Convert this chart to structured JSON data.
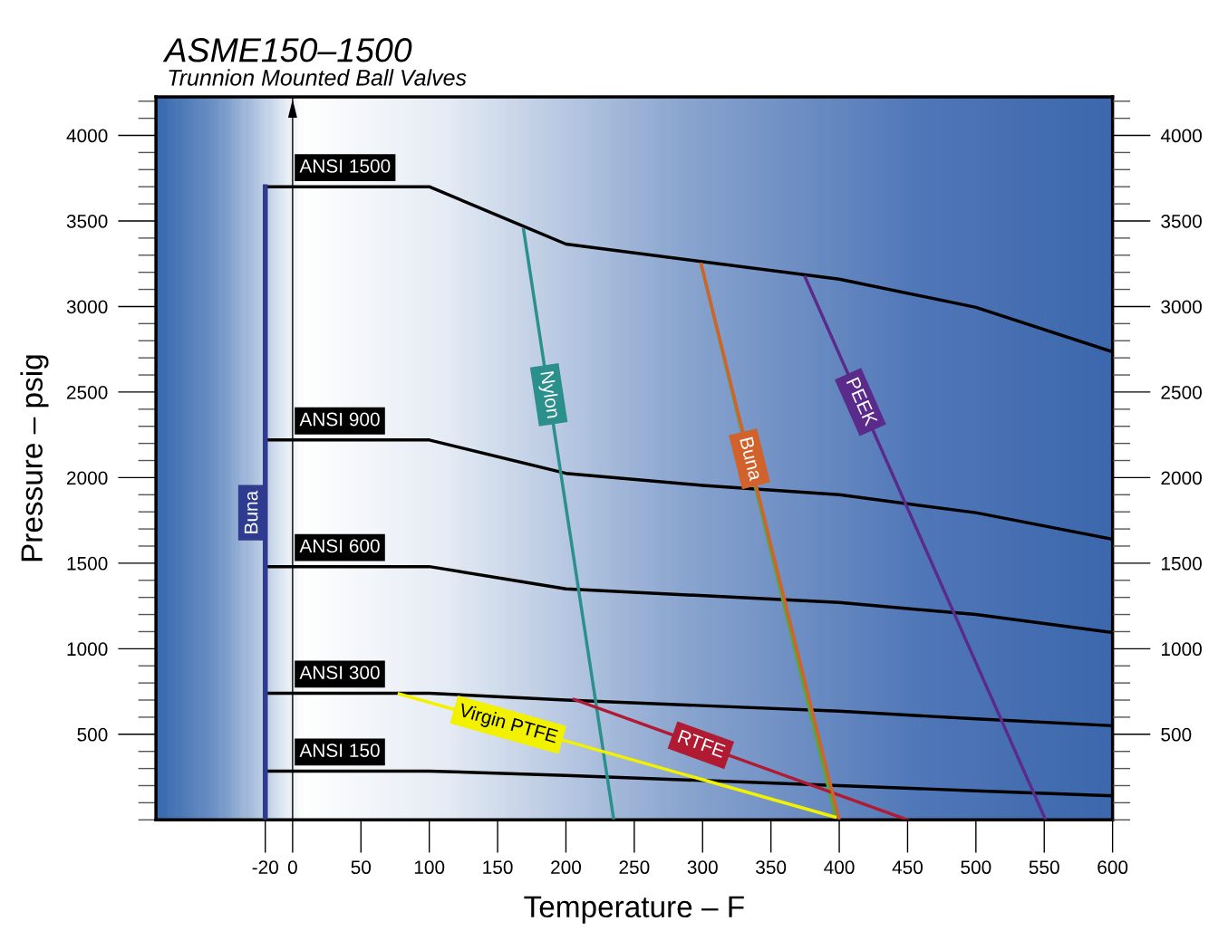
{
  "chart_data": {
    "type": "line",
    "title": "ASME150–1500",
    "subtitle": "Trunnion Mounted Ball Valves",
    "xlabel": "Temperature – F",
    "ylabel": "Pressure – psig",
    "xlim": [
      -100,
      600
    ],
    "xticks": [
      -20,
      0,
      50,
      100,
      150,
      200,
      250,
      300,
      350,
      400,
      450,
      500,
      550,
      600
    ],
    "ylim": [
      0,
      4225
    ],
    "yticks": [
      500,
      1000,
      1500,
      2000,
      2500,
      3000,
      3500,
      4000
    ],
    "y2lim": [
      0,
      4225
    ],
    "y2ticks": [
      500,
      1000,
      1500,
      2000,
      2500,
      3000,
      3500,
      4000
    ],
    "grid": false,
    "legend": false,
    "marker": "none",
    "line_style": "solid",
    "ref_lines": [
      {
        "axis": "x",
        "value": 0,
        "color": "#000000"
      }
    ],
    "series": [
      {
        "name": "ANSI 1500",
        "color": "#000000",
        "x": [
          -20,
          100,
          200,
          400,
          500,
          600
        ],
        "values": [
          3700,
          3700,
          3365,
          3160,
          2995,
          2735
        ]
      },
      {
        "name": "ANSI 900",
        "color": "#000000",
        "x": [
          -20,
          100,
          200,
          300,
          400,
          500,
          600
        ],
        "values": [
          2220,
          2220,
          2025,
          1955,
          1900,
          1795,
          1640
        ]
      },
      {
        "name": "ANSI 600",
        "color": "#000000",
        "x": [
          -20,
          100,
          200,
          400,
          500,
          600
        ],
        "values": [
          1480,
          1480,
          1350,
          1270,
          1200,
          1095
        ]
      },
      {
        "name": "ANSI 300",
        "color": "#000000",
        "x": [
          -20,
          100,
          200,
          400,
          500,
          600
        ],
        "values": [
          740,
          740,
          700,
          635,
          590,
          550
        ]
      },
      {
        "name": "ANSI 150",
        "color": "#000000",
        "x": [
          -20,
          100,
          200,
          400,
          500,
          600
        ],
        "values": [
          285,
          285,
          260,
          200,
          170,
          140
        ]
      },
      {
        "name": "Buna",
        "color": "#2e3b8f",
        "x": [
          -20,
          -20
        ],
        "values": [
          0,
          3700
        ]
      },
      {
        "name": "Nylon",
        "color": "#2b8f8c",
        "x": [
          169,
          235
        ],
        "values": [
          3450,
          0
        ]
      },
      {
        "color": "#5aa63c",
        "x": [
          299,
          397
        ],
        "values": [
          3246,
          25
        ]
      },
      {
        "name": "Buna",
        "color": "#d2622c",
        "x": [
          299,
          400
        ],
        "values": [
          3246,
          0
        ]
      },
      {
        "name": "PEEK",
        "color": "#5a2b8b",
        "x": [
          375,
          551
        ],
        "values": [
          3172,
          0
        ]
      },
      {
        "name": "Virgin PTFE",
        "color": "#f2f200",
        "x": [
          78,
          397
        ],
        "values": [
          736,
          16
        ]
      },
      {
        "name": "RTFE",
        "color": "#b01a32",
        "x": [
          206,
          450
        ],
        "values": [
          704,
          0
        ]
      }
    ]
  }
}
